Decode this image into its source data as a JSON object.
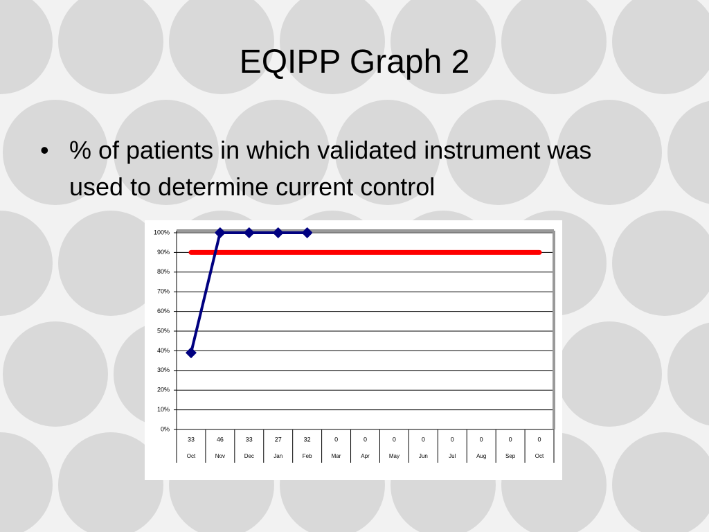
{
  "slide": {
    "title": "EQIPP Graph 2",
    "bullet": "% of patients in which validated instrument was used to determine current control"
  },
  "chart_data": {
    "type": "line",
    "categories": [
      "Oct",
      "Nov",
      "Dec",
      "Jan",
      "Feb",
      "Mar",
      "Apr",
      "May",
      "Jun",
      "Jul",
      "Aug",
      "Sep",
      "Oct"
    ],
    "counts": [
      33,
      46,
      33,
      27,
      32,
      0,
      0,
      0,
      0,
      0,
      0,
      0,
      0
    ],
    "series": [
      {
        "color": "#000080",
        "values": [
          39,
          100,
          100,
          100,
          100,
          null,
          null,
          null,
          null,
          null,
          null,
          null,
          null
        ]
      },
      {
        "color": "#ff0000",
        "values": [
          90,
          90,
          90,
          90,
          90,
          90,
          90,
          90,
          90,
          90,
          90,
          90,
          90
        ]
      }
    ],
    "ylim": [
      0,
      100
    ],
    "yticks": [
      {
        "value": 0,
        "label": "0%"
      },
      {
        "value": 10,
        "label": "10%"
      },
      {
        "value": 20,
        "label": "20%"
      },
      {
        "value": 30,
        "label": "30%"
      },
      {
        "value": 40,
        "label": "40%"
      },
      {
        "value": 50,
        "label": "50%"
      },
      {
        "value": 60,
        "label": "60%"
      },
      {
        "value": 70,
        "label": "70%"
      },
      {
        "value": 80,
        "label": "80%"
      },
      {
        "value": 90,
        "label": "90%"
      },
      {
        "value": 100,
        "label": "100%"
      }
    ],
    "grid": true
  }
}
